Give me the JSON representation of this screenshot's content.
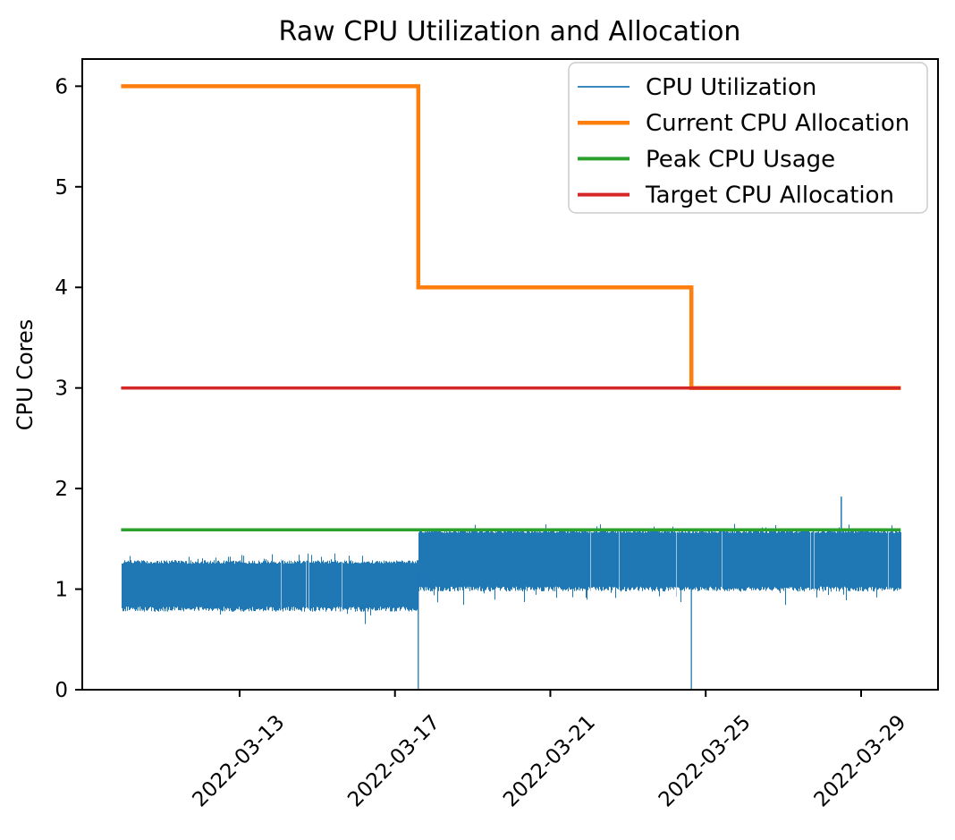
{
  "chart_data": {
    "type": "line",
    "title": "Raw CPU Utilization and Allocation",
    "xlabel": "",
    "ylabel": "CPU Cores",
    "ylim": [
      0,
      6.27
    ],
    "xlim_days": [
      -4.05,
      17.98
    ],
    "grid": false,
    "legend_position": "upper right",
    "y_ticks": [
      0,
      1,
      2,
      3,
      4,
      5,
      6
    ],
    "x_ticks": [
      {
        "day": 0,
        "label": "2022-03-13"
      },
      {
        "day": 4,
        "label": "2022-03-17"
      },
      {
        "day": 8,
        "label": "2022-03-21"
      },
      {
        "day": 12,
        "label": "2022-03-25"
      },
      {
        "day": 16,
        "label": "2022-03-29"
      }
    ],
    "series": [
      {
        "name": "CPU Utilization",
        "type": "noisy-band",
        "color": "#1f77b4",
        "linewidth": 1,
        "legend_linewidth": 1.8,
        "segments": [
          {
            "day_start": -3.05,
            "day_end": 4.6,
            "band_min": 0.8,
            "band_max": 1.27
          },
          {
            "day_start": 4.6,
            "day_end": 17.02,
            "band_min": 1.0,
            "band_max": 1.575
          }
        ],
        "dips_to_zero_days": [
          4.6,
          11.63
        ],
        "spikes": [
          {
            "day": 15.49,
            "value": 1.92
          }
        ]
      },
      {
        "name": "Current CPU Allocation",
        "type": "step-line",
        "color": "#ff7f0e",
        "linewidth": 4.5,
        "legend_linewidth": 4.5,
        "points": [
          [
            -3.05,
            6
          ],
          [
            4.6,
            6
          ],
          [
            4.6,
            4
          ],
          [
            11.63,
            4
          ],
          [
            11.63,
            3
          ],
          [
            17.02,
            3
          ]
        ]
      },
      {
        "name": "Peak CPU Usage",
        "type": "line",
        "color": "#2ca02c",
        "linewidth": 3.5,
        "legend_linewidth": 4,
        "points": [
          [
            -3.05,
            1.59
          ],
          [
            17.02,
            1.59
          ]
        ]
      },
      {
        "name": "Target CPU Allocation",
        "type": "line",
        "color": "#d62728",
        "linewidth": 3.5,
        "legend_linewidth": 4,
        "points": [
          [
            -3.05,
            3
          ],
          [
            17.02,
            3
          ]
        ]
      }
    ]
  }
}
